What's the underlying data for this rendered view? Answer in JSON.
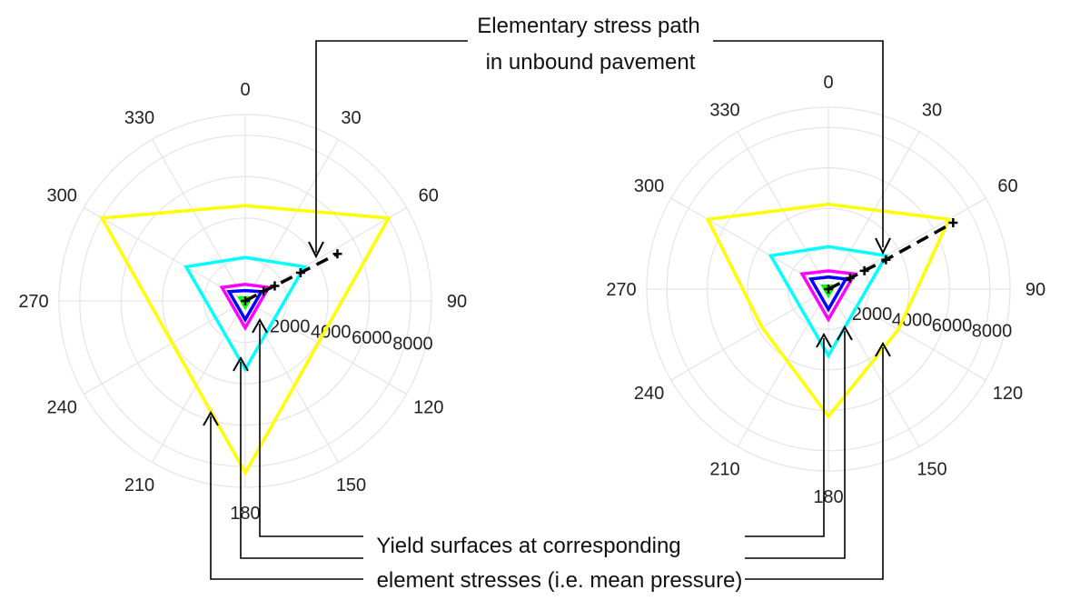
{
  "chart_data": [
    {
      "type": "polar",
      "theta_ticks": [
        "0",
        "30",
        "60",
        "90",
        "120",
        "150",
        "180",
        "210",
        "240",
        "270",
        "300",
        "330"
      ],
      "r_ticks": [
        "2000",
        "4000",
        "6000",
        "8000"
      ],
      "rlim": [
        0,
        9000
      ],
      "grid": true,
      "series": [
        {
          "color": "#ffff00",
          "shape": "triangle",
          "points": [
            [
              0,
              4600
            ],
            [
              60,
              8000
            ],
            [
              180,
              8300
            ],
            [
              300,
              8000
            ]
          ]
        },
        {
          "color": "#00ffff",
          "shape": "triangle",
          "points": [
            [
              0,
              2100
            ],
            [
              60,
              3300
            ],
            [
              180,
              3300
            ],
            [
              300,
              3300
            ]
          ]
        },
        {
          "color": "#ff00ff",
          "shape": "triangle",
          "points": [
            [
              0,
              800
            ],
            [
              60,
              1300
            ],
            [
              180,
              1300
            ],
            [
              300,
              1300
            ]
          ]
        },
        {
          "color": "#0000ff",
          "shape": "triangle",
          "points": [
            [
              0,
              500
            ],
            [
              60,
              900
            ],
            [
              180,
              900
            ],
            [
              300,
              900
            ]
          ]
        },
        {
          "color": "#00ff00",
          "shape": "triangle",
          "points": [
            [
              0,
              150
            ],
            [
              60,
              300
            ],
            [
              180,
              300
            ],
            [
              300,
              300
            ]
          ]
        },
        {
          "color": "#000000",
          "style": "stress-path",
          "points": [
            [
              0,
              0
            ],
            [
              62,
              1000
            ],
            [
              63,
              1600
            ],
            [
              63,
              3000
            ],
            [
              63,
              5000
            ]
          ]
        }
      ]
    },
    {
      "type": "polar",
      "theta_ticks": [
        "0",
        "30",
        "60",
        "90",
        "120",
        "150",
        "180",
        "210",
        "240",
        "270",
        "300",
        "330"
      ],
      "r_ticks": [
        "2000",
        "4000",
        "6000",
        "8000"
      ],
      "rlim": [
        0,
        9000
      ],
      "grid": true,
      "series": [
        {
          "color": "#ffff00",
          "shape": "triangle",
          "points": [
            [
              0,
              4200
            ],
            [
              60,
              6900
            ],
            [
              120,
              4000
            ],
            [
              180,
              6300
            ],
            [
              240,
              3800
            ],
            [
              300,
              6900
            ]
          ]
        },
        {
          "color": "#00ffff",
          "shape": "triangle",
          "points": [
            [
              0,
              2100
            ],
            [
              60,
              3300
            ],
            [
              180,
              3300
            ],
            [
              300,
              3300
            ]
          ]
        },
        {
          "color": "#ff00ff",
          "shape": "triangle",
          "points": [
            [
              0,
              900
            ],
            [
              60,
              1500
            ],
            [
              180,
              1500
            ],
            [
              300,
              1500
            ]
          ]
        },
        {
          "color": "#0000ff",
          "shape": "triangle",
          "points": [
            [
              0,
              600
            ],
            [
              60,
              1000
            ],
            [
              180,
              1000
            ],
            [
              300,
              1000
            ]
          ]
        },
        {
          "color": "#00ff00",
          "shape": "triangle",
          "points": [
            [
              0,
              150
            ],
            [
              60,
              300
            ],
            [
              180,
              300
            ],
            [
              300,
              300
            ]
          ]
        },
        {
          "color": "#000000",
          "style": "stress-path",
          "points": [
            [
              0,
              0
            ],
            [
              63,
              1200
            ],
            [
              63,
              2000
            ],
            [
              63,
              3200
            ],
            [
              62,
              7000
            ]
          ]
        }
      ]
    }
  ],
  "annotations": {
    "stress_path_line1": "Elementary stress path",
    "stress_path_line2": "in unbound pavement",
    "yield_line1": "Yield surfaces at corresponding",
    "yield_line2": "element stresses (i.e. mean pressure)"
  }
}
